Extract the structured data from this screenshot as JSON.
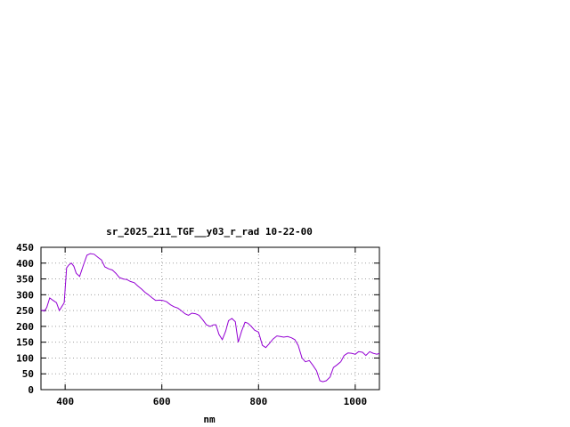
{
  "chart_data": {
    "type": "line",
    "title": "sr_2025_211_TGF__y03_r_rad 10-22-00",
    "xlabel": "nm",
    "ylabel": "",
    "xlim": [
      350,
      1050
    ],
    "ylim": [
      0,
      450
    ],
    "x_ticks": [
      400,
      600,
      800,
      1000
    ],
    "y_ticks": [
      0,
      50,
      100,
      150,
      200,
      250,
      300,
      350,
      400,
      450
    ],
    "grid": true,
    "line_color": "#9400d3",
    "series": [
      {
        "x": [
          350,
          357,
          362,
          368,
          375,
          382,
          388,
          393,
          398,
          403,
          408,
          413,
          418,
          423,
          430,
          438,
          445,
          452,
          460,
          468,
          475,
          482,
          490,
          498,
          505,
          512,
          520,
          528,
          535,
          543,
          550,
          558,
          565,
          572,
          580,
          587,
          595,
          602,
          610,
          618,
          625,
          633,
          640,
          648,
          655,
          662,
          670,
          677,
          685,
          692,
          700,
          707,
          712,
          718,
          725,
          732,
          738,
          745,
          752,
          758,
          765,
          772,
          778,
          785,
          792,
          800,
          808,
          815,
          822,
          830,
          838,
          845,
          852,
          860,
          868,
          875,
          882,
          890,
          897,
          905,
          912,
          920,
          927,
          933,
          940,
          948,
          955,
          962,
          970,
          977,
          985,
          992,
          1000,
          1007,
          1015,
          1022,
          1030,
          1037,
          1045,
          1050
        ],
        "y": [
          252,
          248,
          260,
          290,
          282,
          275,
          250,
          262,
          275,
          385,
          395,
          400,
          390,
          368,
          358,
          395,
          425,
          430,
          428,
          418,
          410,
          388,
          382,
          378,
          368,
          355,
          350,
          348,
          342,
          338,
          328,
          318,
          308,
          300,
          290,
          282,
          283,
          282,
          278,
          268,
          262,
          258,
          250,
          240,
          235,
          242,
          240,
          235,
          220,
          205,
          200,
          205,
          205,
          175,
          158,
          185,
          218,
          225,
          215,
          150,
          185,
          213,
          210,
          200,
          188,
          182,
          140,
          133,
          145,
          160,
          170,
          168,
          166,
          168,
          164,
          158,
          140,
          100,
          88,
          92,
          78,
          60,
          28,
          25,
          28,
          40,
          70,
          78,
          88,
          108,
          116,
          115,
          112,
          120,
          118,
          108,
          120,
          115,
          112,
          115
        ]
      }
    ]
  }
}
